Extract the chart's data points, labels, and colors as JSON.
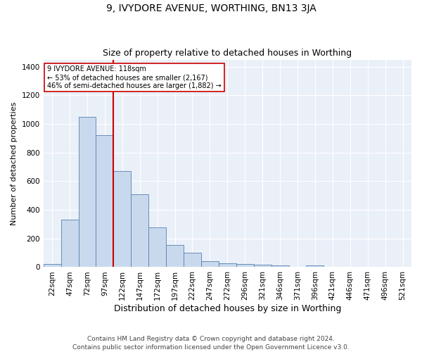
{
  "title": "9, IVYDORE AVENUE, WORTHING, BN13 3JA",
  "subtitle": "Size of property relative to detached houses in Worthing",
  "xlabel": "Distribution of detached houses by size in Worthing",
  "ylabel": "Number of detached properties",
  "bar_labels": [
    "22sqm",
    "47sqm",
    "72sqm",
    "97sqm",
    "122sqm",
    "147sqm",
    "172sqm",
    "197sqm",
    "222sqm",
    "247sqm",
    "272sqm",
    "296sqm",
    "321sqm",
    "346sqm",
    "371sqm",
    "396sqm",
    "421sqm",
    "446sqm",
    "471sqm",
    "496sqm",
    "521sqm"
  ],
  "bar_values": [
    20,
    330,
    1050,
    920,
    670,
    510,
    280,
    155,
    100,
    40,
    25,
    22,
    17,
    10,
    0,
    14,
    0,
    0,
    0,
    0,
    2
  ],
  "bar_color": "#c9d9ed",
  "bar_edge_color": "#5580b0",
  "vline_x": 4,
  "vline_color": "#cc0000",
  "annotation_text": "9 IVYDORE AVENUE: 118sqm\n← 53% of detached houses are smaller (2,167)\n46% of semi-detached houses are larger (1,882) →",
  "annotation_box_color": "#ffffff",
  "annotation_box_edge": "#cc0000",
  "ylim": [
    0,
    1450
  ],
  "yticks": [
    0,
    200,
    400,
    600,
    800,
    1000,
    1200,
    1400
  ],
  "bg_color": "#eaf0f8",
  "footnote": "Contains HM Land Registry data © Crown copyright and database right 2024.\nContains public sector information licensed under the Open Government Licence v3.0.",
  "title_fontsize": 10,
  "subtitle_fontsize": 9,
  "xlabel_fontsize": 9,
  "ylabel_fontsize": 8,
  "tick_fontsize": 7.5,
  "footnote_fontsize": 6.5
}
